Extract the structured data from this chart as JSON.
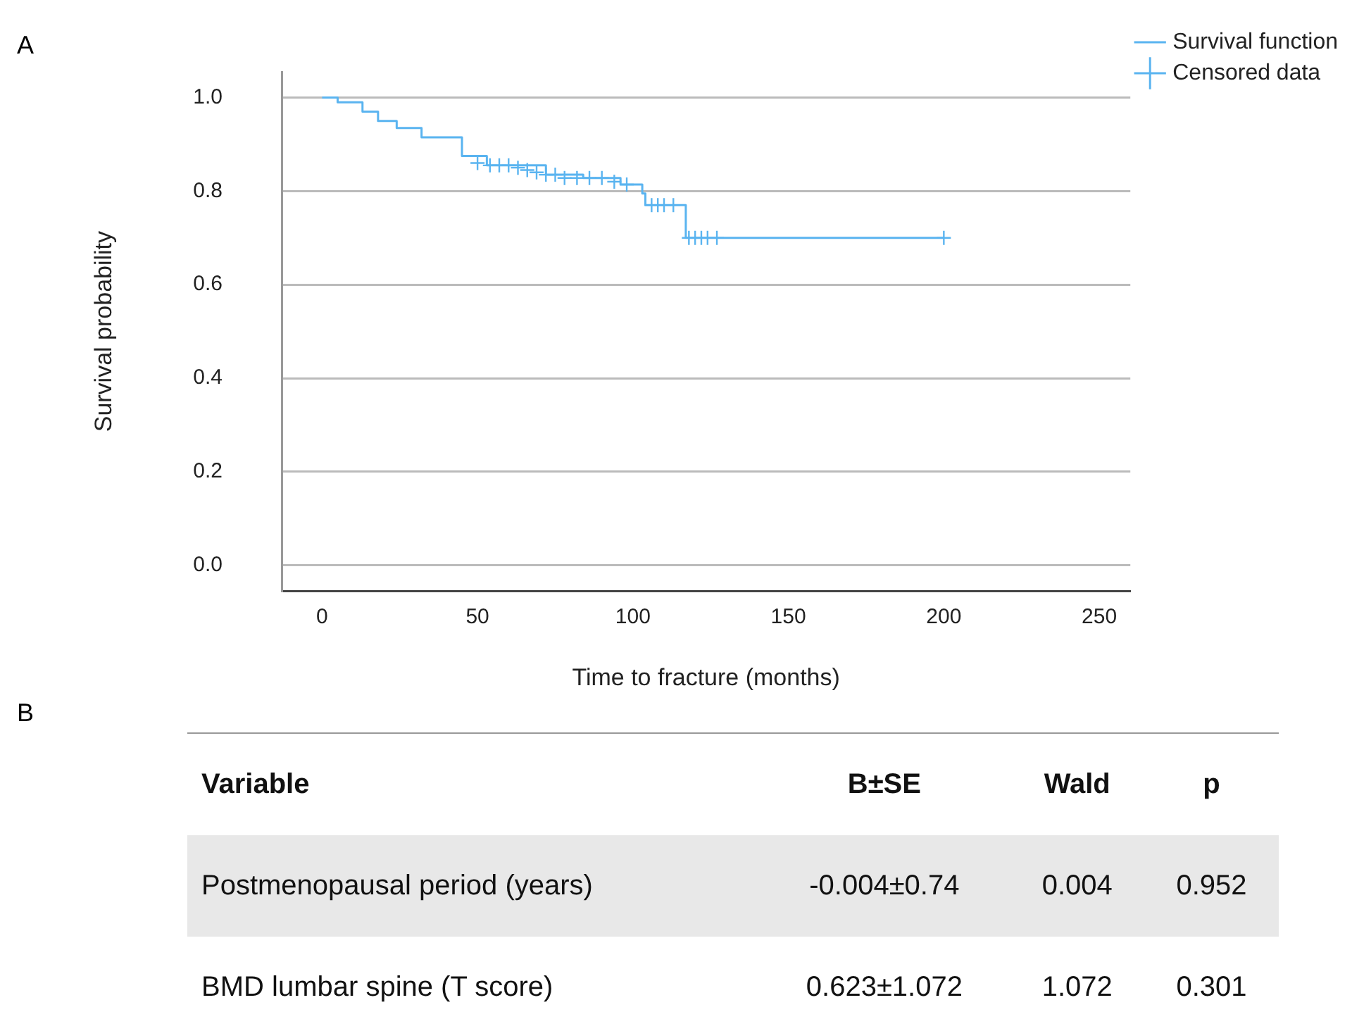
{
  "chart_data": [
    {
      "type": "step",
      "annotations": [
        "A"
      ],
      "xlabel": "Time to fracture (months)",
      "ylabel": "Survival probability",
      "xlim": [
        -13,
        260
      ],
      "xticks": [
        0,
        50,
        100,
        150,
        200,
        250
      ],
      "ylim": [
        -0.055,
        1.055
      ],
      "yticks": [
        {
          "value": 0,
          "label": "0.0"
        },
        {
          "value": 0.2,
          "label": "0.2"
        },
        {
          "value": 0.4,
          "label": "0.4"
        },
        {
          "value": 0.6,
          "label": "0.6"
        },
        {
          "value": 0.8,
          "label": "0.8"
        },
        {
          "value": 1,
          "label": "1.0"
        }
      ],
      "grid": "y",
      "legend": "top right",
      "series": [
        {
          "name": "Survival function",
          "type": "step",
          "color": "#5ab4f0",
          "marker": "none",
          "x": [
            0,
            5,
            13,
            18,
            24,
            32,
            45,
            53,
            72,
            84,
            96,
            103,
            104,
            117,
            200
          ],
          "values": [
            1.0,
            0.99,
            0.97,
            0.95,
            0.935,
            0.915,
            0.875,
            0.855,
            0.835,
            0.828,
            0.814,
            0.795,
            0.77,
            0.7,
            0.7
          ]
        },
        {
          "name": "Censored data",
          "type": "scatter",
          "color": "#5ab4f0",
          "marker": "cross",
          "x": [
            50,
            54,
            57,
            60,
            63,
            66,
            69,
            72,
            75,
            78,
            82,
            86,
            90,
            94,
            98,
            106,
            108,
            110,
            113,
            118,
            120,
            122,
            124,
            127,
            200
          ],
          "values": [
            0.86,
            0.855,
            0.855,
            0.855,
            0.85,
            0.845,
            0.84,
            0.835,
            0.835,
            0.828,
            0.828,
            0.828,
            0.828,
            0.82,
            0.814,
            0.77,
            0.77,
            0.77,
            0.77,
            0.7,
            0.7,
            0.7,
            0.7,
            0.7,
            0.7
          ]
        }
      ]
    },
    {
      "type": "other",
      "title": "B",
      "annotations": [
        "Variable",
        "B±SE",
        "Wald",
        "p",
        "Postmenopausal period (years)",
        "-0.004±0.74",
        "0.004",
        "0.952",
        "BMD lumbar spine (T score)",
        "0.623±1.072",
        "1.072",
        "0.301"
      ]
    }
  ]
}
